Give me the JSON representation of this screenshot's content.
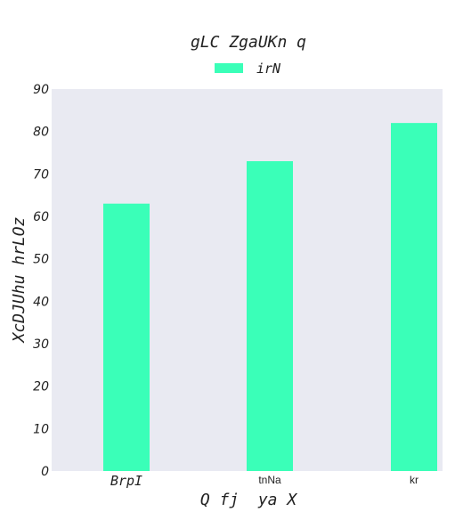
{
  "chart_data": {
    "type": "bar",
    "title": "gLC ZgaUKn q",
    "xlabel": "Q fj  ya X",
    "ylabel": "XcDJUhu hrLOz",
    "categories": [
      "BrpI",
      "tnNa",
      "kr"
    ],
    "series": [
      {
        "name": "irN",
        "values": [
          63,
          73,
          82
        ],
        "color": "#3affb8"
      }
    ],
    "ylim": [
      0,
      90
    ],
    "yticks": [
      "0",
      "10",
      "20",
      "30",
      "40",
      "50",
      "60",
      "70",
      "80",
      "90"
    ],
    "grid": false,
    "legend": "top-center",
    "plot_background": "#e9eaf2"
  }
}
